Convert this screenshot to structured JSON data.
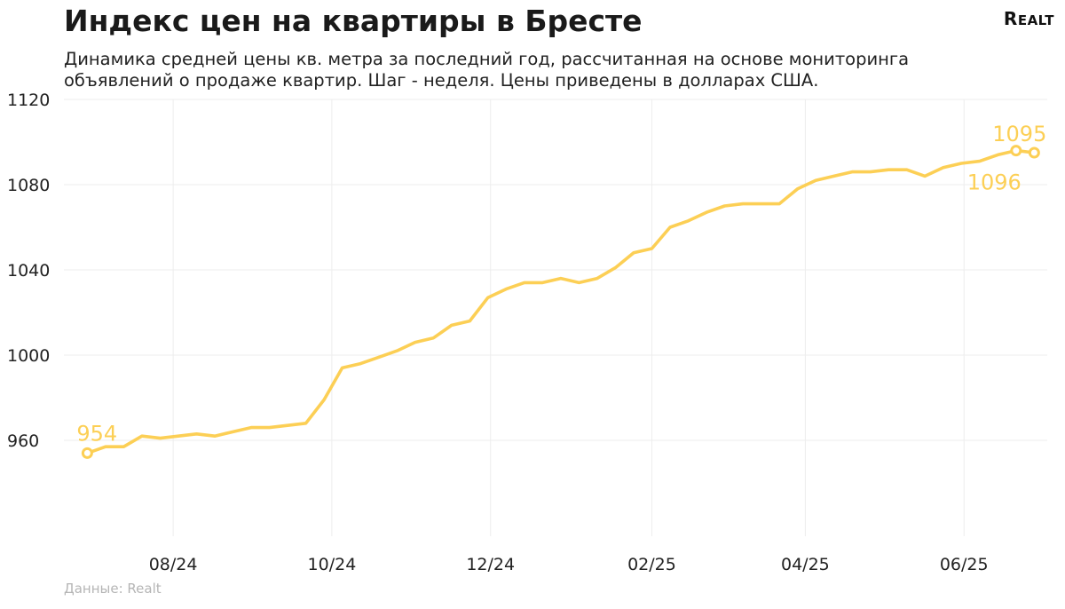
{
  "title": "Индекс цен на квартиры в Бресте",
  "subtitle": "Динамика средней цены кв. метра за последний год, рассчитанная на основе мониторинга объявлений о продаже квартир. Шаг - неделя. Цены приведены в долларах США.",
  "logo": "Realt",
  "source": "Данные: Realt",
  "colors": {
    "line": "#fccf55",
    "grid": "#ededed",
    "label": "#fccf55"
  },
  "chart_data": {
    "type": "line",
    "title": "Индекс цен на квартиры в Бресте",
    "xlabel": "",
    "ylabel": "",
    "ylim": [
      915,
      1120
    ],
    "yticks": [
      960,
      1000,
      1040,
      1080,
      1120
    ],
    "xticks": [
      {
        "date": "2024-08-01",
        "label": "08/24"
      },
      {
        "date": "2024-10-01",
        "label": "10/24"
      },
      {
        "date": "2024-12-01",
        "label": "12/24"
      },
      {
        "date": "2025-02-01",
        "label": "02/25"
      },
      {
        "date": "2025-04-01",
        "label": "04/25"
      },
      {
        "date": "2025-06-01",
        "label": "06/25"
      }
    ],
    "xlim": [
      "2024-06-20",
      "2025-07-03"
    ],
    "grid": true,
    "series": [
      {
        "dates": [
          "2024-06-29",
          "2024-07-06",
          "2024-07-13",
          "2024-07-20",
          "2024-07-27",
          "2024-08-03",
          "2024-08-10",
          "2024-08-17",
          "2024-08-24",
          "2024-08-31",
          "2024-09-07",
          "2024-09-14",
          "2024-09-21",
          "2024-09-28",
          "2024-10-05",
          "2024-10-12",
          "2024-10-19",
          "2024-10-26",
          "2024-11-02",
          "2024-11-09",
          "2024-11-16",
          "2024-11-23",
          "2024-11-30",
          "2024-12-07",
          "2024-12-14",
          "2024-12-21",
          "2024-12-28",
          "2025-01-04",
          "2025-01-11",
          "2025-01-18",
          "2025-01-25",
          "2025-02-01",
          "2025-02-08",
          "2025-02-15",
          "2025-02-22",
          "2025-03-01",
          "2025-03-08",
          "2025-03-15",
          "2025-03-22",
          "2025-03-29",
          "2025-04-05",
          "2025-04-12",
          "2025-04-19",
          "2025-04-26",
          "2025-05-03",
          "2025-05-10",
          "2025-05-17",
          "2025-05-24",
          "2025-05-31",
          "2025-06-07",
          "2025-06-14",
          "2025-06-21",
          "2025-06-28"
        ],
        "values": [
          954,
          957,
          957,
          962,
          961,
          962,
          963,
          962,
          964,
          966,
          966,
          967,
          968,
          979,
          994,
          996,
          999,
          1002,
          1006,
          1008,
          1014,
          1016,
          1027,
          1031,
          1034,
          1034,
          1036,
          1034,
          1036,
          1041,
          1048,
          1050,
          1060,
          1063,
          1067,
          1070,
          1071,
          1071,
          1071,
          1078,
          1082,
          1084,
          1086,
          1086,
          1087,
          1087,
          1084,
          1088,
          1090,
          1091,
          1094,
          1096,
          1095
        ]
      }
    ],
    "annotations": [
      {
        "date": "2024-06-29",
        "value": 954,
        "label": "954",
        "position": "above"
      },
      {
        "date": "2025-06-21",
        "value": 1096,
        "label": "1096",
        "position": "below-left"
      },
      {
        "date": "2025-06-28",
        "value": 1095,
        "label": "1095",
        "position": "above"
      }
    ]
  }
}
